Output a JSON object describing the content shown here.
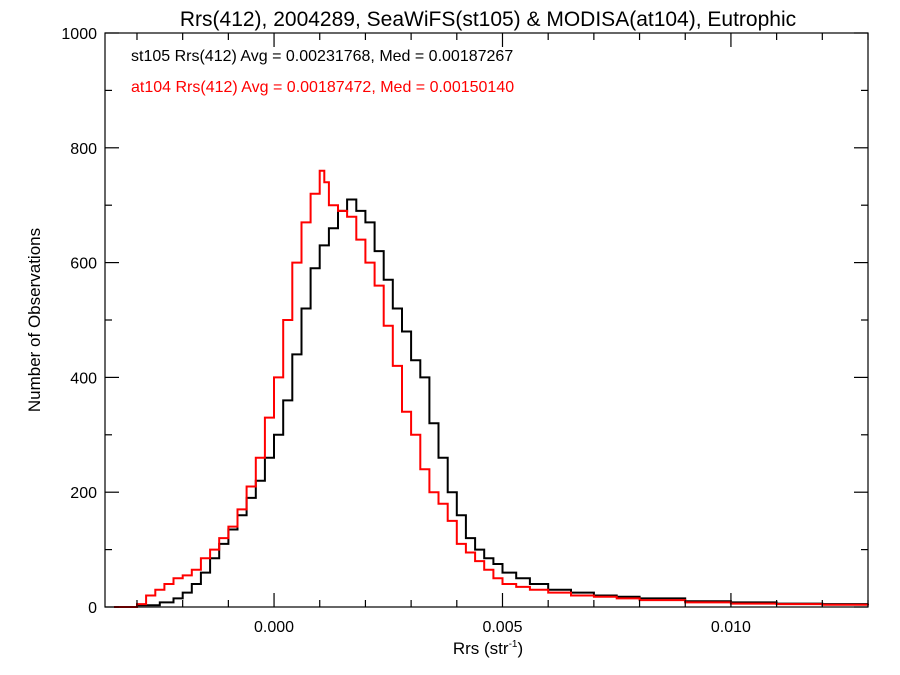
{
  "chart_data": {
    "type": "line",
    "step": true,
    "title": "Rrs(412), 2004289, SeaWiFS(st105) & MODISA(at104), Eutrophic",
    "xlabel": "Rrs (str",
    "xlabel_sup": "-1",
    "xlabel_end": ")",
    "ylabel": "Number of Observations",
    "xlim": [
      -0.0037,
      0.013
    ],
    "ylim": [
      0,
      1000
    ],
    "grid": false,
    "xticks": [
      0.0,
      0.005,
      0.01
    ],
    "xtick_labels": [
      "0.000",
      "0.005",
      "0.010"
    ],
    "yticks": [
      0,
      200,
      400,
      600,
      800,
      1000
    ],
    "ytick_labels": [
      "0",
      "200",
      "400",
      "600",
      "800",
      "1000"
    ],
    "annotations": [
      {
        "text": "st105 Rrs(412) Avg = 0.00231768, Med = 0.00187267",
        "color": "#000000"
      },
      {
        "text": "at104 Rrs(412) Avg = 0.00187472, Med = 0.00150140",
        "color": "#ff0000"
      }
    ],
    "series": [
      {
        "color": "#000000",
        "x": [
          -0.0035,
          -0.003,
          -0.0025,
          -0.0022,
          -0.002,
          -0.0018,
          -0.0016,
          -0.0014,
          -0.0012,
          -0.001,
          -0.0008,
          -0.0006,
          -0.0004,
          -0.0002,
          0.0,
          0.0002,
          0.0004,
          0.0006,
          0.0008,
          0.001,
          0.0012,
          0.0014,
          0.0016,
          0.0018,
          0.002,
          0.0022,
          0.0024,
          0.0026,
          0.0028,
          0.003,
          0.0032,
          0.0034,
          0.0036,
          0.0038,
          0.004,
          0.0042,
          0.0044,
          0.0046,
          0.0048,
          0.005,
          0.0053,
          0.0056,
          0.006,
          0.0065,
          0.007,
          0.0075,
          0.008,
          0.009,
          0.01,
          0.011,
          0.012,
          0.013
        ],
        "y": [
          0,
          3,
          8,
          15,
          25,
          40,
          60,
          85,
          110,
          135,
          160,
          190,
          220,
          260,
          300,
          360,
          440,
          520,
          590,
          630,
          660,
          690,
          710,
          690,
          670,
          620,
          570,
          520,
          480,
          430,
          400,
          320,
          260,
          200,
          160,
          120,
          100,
          85,
          75,
          60,
          50,
          40,
          30,
          25,
          20,
          18,
          15,
          10,
          8,
          6,
          5,
          5
        ]
      },
      {
        "color": "#ff0000",
        "x": [
          -0.0035,
          -0.003,
          -0.0028,
          -0.0026,
          -0.0024,
          -0.0022,
          -0.002,
          -0.0018,
          -0.0016,
          -0.0014,
          -0.0012,
          -0.001,
          -0.0008,
          -0.0006,
          -0.0004,
          -0.0002,
          0.0,
          0.0002,
          0.0004,
          0.0006,
          0.0008,
          0.001,
          0.0011,
          0.0012,
          0.0014,
          0.0016,
          0.0018,
          0.002,
          0.0022,
          0.0024,
          0.0026,
          0.0028,
          0.003,
          0.0032,
          0.0034,
          0.0036,
          0.0038,
          0.004,
          0.0042,
          0.0044,
          0.0046,
          0.0048,
          0.005,
          0.0053,
          0.0056,
          0.006,
          0.0065,
          0.007,
          0.0075,
          0.008,
          0.009,
          0.01,
          0.011,
          0.012,
          0.013
        ],
        "y": [
          0,
          5,
          20,
          30,
          40,
          50,
          55,
          65,
          85,
          100,
          120,
          140,
          170,
          210,
          260,
          330,
          400,
          500,
          600,
          670,
          720,
          760,
          740,
          700,
          690,
          680,
          640,
          600,
          560,
          490,
          420,
          340,
          300,
          240,
          200,
          180,
          150,
          110,
          95,
          80,
          65,
          50,
          40,
          35,
          30,
          25,
          20,
          18,
          15,
          12,
          8,
          6,
          5,
          4,
          3
        ]
      }
    ]
  }
}
